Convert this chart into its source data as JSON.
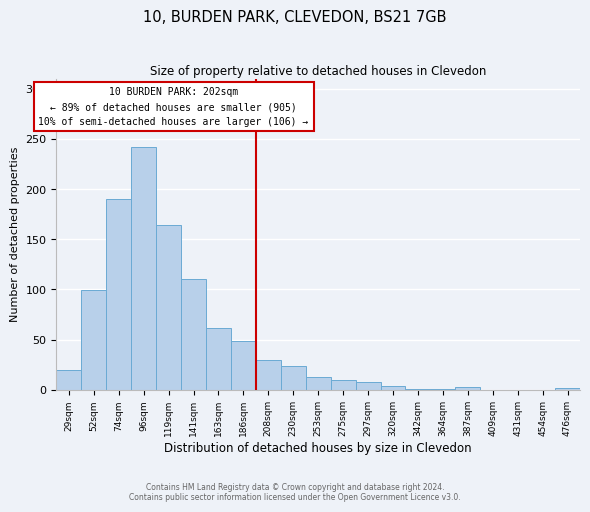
{
  "title": "10, BURDEN PARK, CLEVEDON, BS21 7GB",
  "subtitle": "Size of property relative to detached houses in Clevedon",
  "xlabel": "Distribution of detached houses by size in Clevedon",
  "ylabel": "Number of detached properties",
  "bin_labels": [
    "29sqm",
    "52sqm",
    "74sqm",
    "96sqm",
    "119sqm",
    "141sqm",
    "163sqm",
    "186sqm",
    "208sqm",
    "230sqm",
    "253sqm",
    "275sqm",
    "297sqm",
    "320sqm",
    "342sqm",
    "364sqm",
    "387sqm",
    "409sqm",
    "431sqm",
    "454sqm",
    "476sqm"
  ],
  "bin_values": [
    20,
    99,
    190,
    242,
    164,
    110,
    62,
    49,
    30,
    24,
    13,
    10,
    8,
    4,
    1,
    1,
    3,
    0,
    0,
    0,
    2
  ],
  "bar_color": "#b8d0ea",
  "bar_edge_color": "#6aaad4",
  "vline_x_index": 8,
  "vline_color": "#cc0000",
  "annotation_title": "10 BURDEN PARK: 202sqm",
  "annotation_line1": "← 89% of detached houses are smaller (905)",
  "annotation_line2": "10% of semi-detached houses are larger (106) →",
  "annotation_box_color": "#cc0000",
  "ylim": [
    0,
    310
  ],
  "yticks": [
    0,
    50,
    100,
    150,
    200,
    250,
    300
  ],
  "footer_line1": "Contains HM Land Registry data © Crown copyright and database right 2024.",
  "footer_line2": "Contains public sector information licensed under the Open Government Licence v3.0.",
  "background_color": "#eef2f8",
  "plot_background": "#eef2f8",
  "grid_color": "#ffffff"
}
